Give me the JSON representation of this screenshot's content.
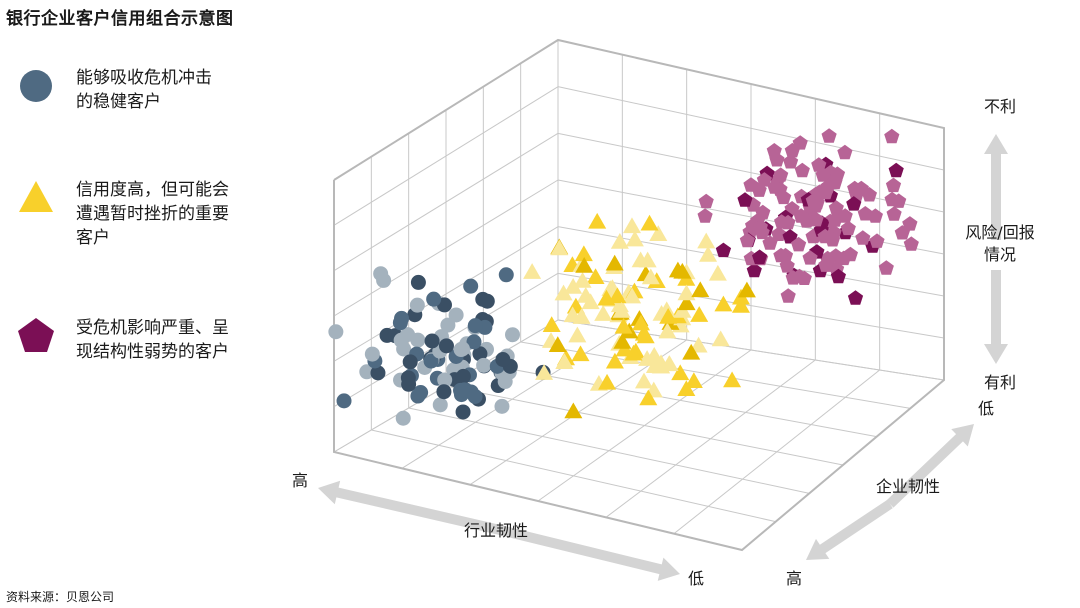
{
  "title": "银行企业客户信用组合示意图",
  "source": "资料来源：贝恩公司",
  "colors": {
    "series_a": "#4f6a82",
    "series_a_dark": "#3a4f64",
    "series_a_light": "#a4b2bd",
    "series_b": "#f8d02b",
    "series_b_light": "#f9e79a",
    "series_b_dark": "#e4b800",
    "series_c": "#7b0f55",
    "series_c_light": "#b76496",
    "grid": "#c8c8c8",
    "arrow": "#d4d4d4"
  },
  "legend": [
    {
      "shape": "circle",
      "text": "能够吸收危机冲击\n的稳健客户"
    },
    {
      "shape": "triangle",
      "text": "信用度高，但可能会\n遭遇暂时挫折的重要\n客户"
    },
    {
      "shape": "pentagon",
      "text": "受危机影响严重、呈\n现结构性弱势的客户"
    }
  ],
  "chart_data": {
    "type": "scatter",
    "title": "银行企业客户信用组合示意图",
    "axes": {
      "industry_resilience": {
        "label": "行业韧性",
        "high": "高",
        "low": "低"
      },
      "enterprise_resilience": {
        "label": "企业韧性",
        "high": "高",
        "low": "低"
      },
      "risk_return": {
        "label": "风险/回报\n情况",
        "top": "不利",
        "bottom": "有利"
      }
    },
    "series": [
      {
        "name": "能够吸收危机冲击的稳健客户",
        "shape": "circle",
        "region": "high industry and enterprise resilience, favorable risk/return",
        "count": 95
      },
      {
        "name": "信用度高，但可能会遭遇暂时挫折的重要客户",
        "shape": "triangle",
        "region": "medium resilience, medium risk/return",
        "count": 110
      },
      {
        "name": "受危机影响严重、呈现结构性弱势的客户",
        "shape": "pentagon",
        "region": "low industry and enterprise resilience, unfavorable risk/return",
        "count": 120
      }
    ]
  }
}
